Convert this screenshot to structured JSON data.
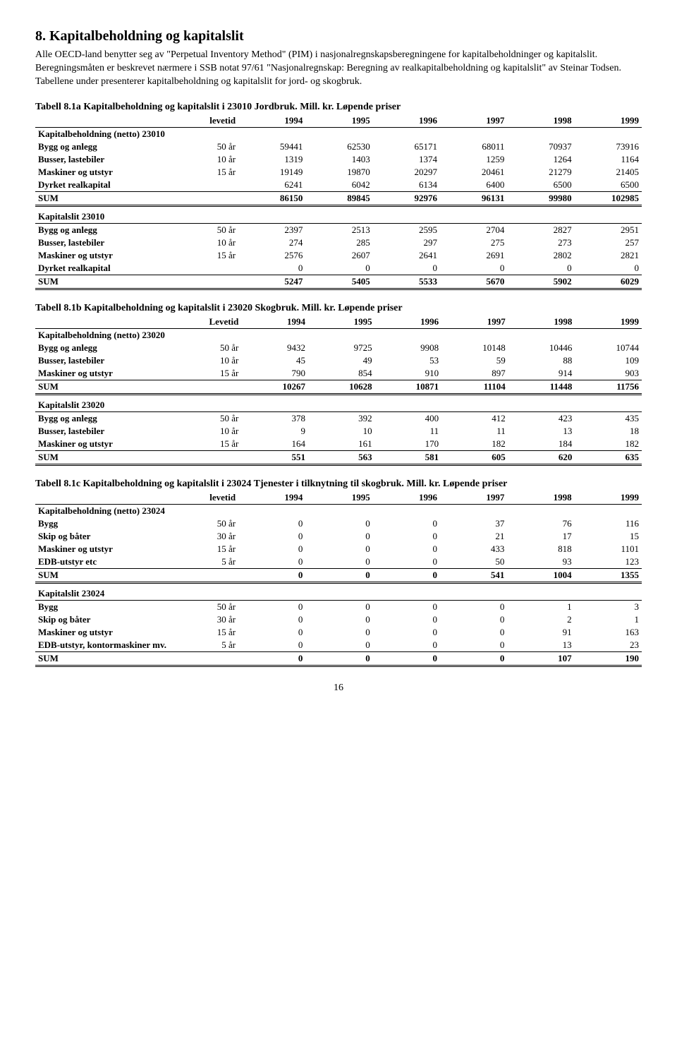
{
  "heading": "8. Kapitalbeholdning og kapitalslit",
  "intro": "Alle OECD-land benytter seg av \"Perpetual Inventory Method\" (PIM) i nasjonalregnskapsberegningene for kapitalbeholdninger og kapitalslit. Beregningsmåten er beskrevet nærmere i SSB notat 97/61 \"Nasjonalregnskap: Beregning av realkapitalbeholdning og kapitalslit\" av Steinar Todsen. Tabellene under presenterer kapitalbeholdning og kapitalslit for jord- og skogbruk.",
  "page_num": "16",
  "t1": {
    "title": "Tabell 8.1a  Kapitalbeholdning og kapitalslit i 23010 Jordbruk. Mill. kr. Løpende priser",
    "hdr_lev": "levetid",
    "years": [
      "1994",
      "1995",
      "1996",
      "1997",
      "1998",
      "1999"
    ],
    "sec1_title": "Kapitalbeholdning (netto) 23010",
    "rows1": [
      {
        "label": "Bygg og anlegg",
        "lev": "50 år",
        "v": [
          "59441",
          "62530",
          "65171",
          "68011",
          "70937",
          "73916"
        ]
      },
      {
        "label": "Busser, lastebiler",
        "lev": "10 år",
        "v": [
          "1319",
          "1403",
          "1374",
          "1259",
          "1264",
          "1164"
        ]
      },
      {
        "label": "Maskiner og utstyr",
        "lev": "15 år",
        "v": [
          "19149",
          "19870",
          "20297",
          "20461",
          "21279",
          "21405"
        ]
      },
      {
        "label": "Dyrket realkapital",
        "lev": "",
        "v": [
          "6241",
          "6042",
          "6134",
          "6400",
          "6500",
          "6500"
        ]
      }
    ],
    "sum1": {
      "label": "SUM",
      "v": [
        "86150",
        "89845",
        "92976",
        "96131",
        "99980",
        "102985"
      ]
    },
    "sec2_title": "Kapitalslit 23010",
    "rows2": [
      {
        "label": "Bygg og anlegg",
        "lev": "50 år",
        "v": [
          "2397",
          "2513",
          "2595",
          "2704",
          "2827",
          "2951"
        ]
      },
      {
        "label": "Busser, lastebiler",
        "lev": "10 år",
        "v": [
          "274",
          "285",
          "297",
          "275",
          "273",
          "257"
        ]
      },
      {
        "label": "Maskiner og utstyr",
        "lev": "15 år",
        "v": [
          "2576",
          "2607",
          "2641",
          "2691",
          "2802",
          "2821"
        ]
      },
      {
        "label": "Dyrket realkapital",
        "lev": "",
        "v": [
          "0",
          "0",
          "0",
          "0",
          "0",
          "0"
        ]
      }
    ],
    "sum2": {
      "label": "SUM",
      "v": [
        "5247",
        "5405",
        "5533",
        "5670",
        "5902",
        "6029"
      ]
    }
  },
  "t2": {
    "title": "Tabell 8.1b  Kapitalbeholdning og kapitalslit i 23020 Skogbruk. Mill. kr. Løpende priser",
    "hdr_lev": "Levetid",
    "years": [
      "1994",
      "1995",
      "1996",
      "1997",
      "1998",
      "1999"
    ],
    "sec1_title": "Kapitalbeholdning (netto) 23020",
    "rows1": [
      {
        "label": "Bygg og anlegg",
        "lev": "50 år",
        "v": [
          "9432",
          "9725",
          "9908",
          "10148",
          "10446",
          "10744"
        ]
      },
      {
        "label": "Busser, lastebiler",
        "lev": "10 år",
        "v": [
          "45",
          "49",
          "53",
          "59",
          "88",
          "109"
        ]
      },
      {
        "label": "Maskiner og utstyr",
        "lev": "15 år",
        "v": [
          "790",
          "854",
          "910",
          "897",
          "914",
          "903"
        ]
      }
    ],
    "sum1": {
      "label": "SUM",
      "v": [
        "10267",
        "10628",
        "10871",
        "11104",
        "11448",
        "11756"
      ]
    },
    "sec2_title": "Kapitalslit 23020",
    "rows2": [
      {
        "label": "Bygg og anlegg",
        "lev": "50 år",
        "v": [
          "378",
          "392",
          "400",
          "412",
          "423",
          "435"
        ]
      },
      {
        "label": "Busser, lastebiler",
        "lev": "10 år",
        "v": [
          "9",
          "10",
          "11",
          "11",
          "13",
          "18"
        ]
      },
      {
        "label": "Maskiner og utstyr",
        "lev": "15 år",
        "v": [
          "164",
          "161",
          "170",
          "182",
          "184",
          "182"
        ]
      }
    ],
    "sum2": {
      "label": "SUM",
      "v": [
        "551",
        "563",
        "581",
        "605",
        "620",
        "635"
      ]
    }
  },
  "t3": {
    "title": "Tabell 8.1c  Kapitalbeholdning og kapitalslit i 23024 Tjenester i tilknytning til skogbruk. Mill. kr. Løpende priser",
    "hdr_lev": "levetid",
    "years": [
      "1994",
      "1995",
      "1996",
      "1997",
      "1998",
      "1999"
    ],
    "sec1_title": "Kapitalbeholdning (netto) 23024",
    "rows1": [
      {
        "label": "Bygg",
        "lev": "50 år",
        "v": [
          "0",
          "0",
          "0",
          "37",
          "76",
          "116"
        ]
      },
      {
        "label": "Skip og båter",
        "lev": "30 år",
        "v": [
          "0",
          "0",
          "0",
          "21",
          "17",
          "15"
        ]
      },
      {
        "label": "Maskiner og utstyr",
        "lev": "15 år",
        "v": [
          "0",
          "0",
          "0",
          "433",
          "818",
          "1101"
        ]
      },
      {
        "label": "EDB-utstyr etc",
        "lev": "5 år",
        "v": [
          "0",
          "0",
          "0",
          "50",
          "93",
          "123"
        ]
      }
    ],
    "sum1": {
      "label": "SUM",
      "v": [
        "0",
        "0",
        "0",
        "541",
        "1004",
        "1355"
      ]
    },
    "sec2_title": "Kapitalslit 23024",
    "rows2": [
      {
        "label": "Bygg",
        "lev": "50 år",
        "v": [
          "0",
          "0",
          "0",
          "0",
          "1",
          "3"
        ]
      },
      {
        "label": "Skip og båter",
        "lev": "30 år",
        "v": [
          "0",
          "0",
          "0",
          "0",
          "2",
          "1"
        ]
      },
      {
        "label": "Maskiner og utstyr",
        "lev": "15 år",
        "v": [
          "0",
          "0",
          "0",
          "0",
          "91",
          "163"
        ]
      },
      {
        "label": "EDB-utstyr, kontormaskiner mv.",
        "lev": "5 år",
        "v": [
          "0",
          "0",
          "0",
          "0",
          "13",
          "23"
        ]
      }
    ],
    "sum2": {
      "label": "SUM",
      "v": [
        "0",
        "0",
        "0",
        "0",
        "107",
        "190"
      ]
    }
  }
}
